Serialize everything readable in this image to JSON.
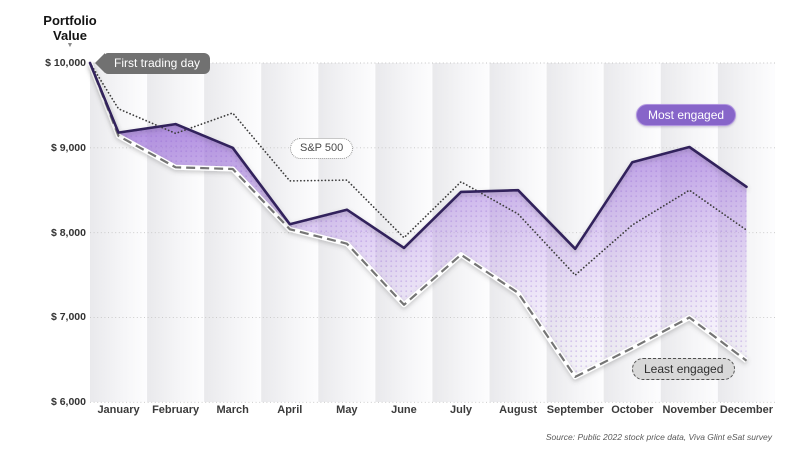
{
  "y_axis": {
    "title_lines": [
      "Portfolio",
      "Value"
    ],
    "tick_labels": [
      "$ 10,000",
      "$ 9,000",
      "$ 8,000",
      "$ 7,000",
      "$ 6,000"
    ],
    "tick_values": [
      10000,
      9000,
      8000,
      7000,
      6000
    ]
  },
  "icons": {
    "axis_pointer": "▼"
  },
  "annotations": {
    "first_trading_day": "First trading day",
    "sp500": "S&P 500",
    "most_engaged": "Most engaged",
    "least_engaged": "Least engaged"
  },
  "source": "Source: Public 2022 stock price data, Viva Glint eSat survey",
  "colors": {
    "most_engaged_line": "#31215c",
    "most_engaged_badge": "#8765c9",
    "fill_top": "#8c5bd1",
    "sp500_line": "#3c3c3c",
    "least_engaged_line": "#757575",
    "grid": "#c5c5c5",
    "band_gray": "#e9e9ec"
  },
  "chart_data": {
    "type": "line",
    "title": "Portfolio Value",
    "categories": [
      "January",
      "February",
      "March",
      "April",
      "May",
      "June",
      "July",
      "August",
      "September",
      "October",
      "November",
      "December"
    ],
    "start_point": {
      "label": "First trading day",
      "value": 10000
    },
    "series": [
      {
        "name": "Most engaged",
        "style": "solid",
        "color": "#31215c",
        "values": [
          9180,
          9280,
          9000,
          8100,
          8270,
          7820,
          8480,
          8500,
          7810,
          8830,
          9010,
          8540
        ]
      },
      {
        "name": "S&P 500",
        "style": "dotted",
        "color": "#3c3c3c",
        "values": [
          9460,
          9170,
          9410,
          8610,
          8620,
          7940,
          8600,
          8220,
          7500,
          8090,
          8500,
          8030
        ]
      },
      {
        "name": "Least engaged",
        "style": "dashed",
        "color": "#757575",
        "values": [
          9140,
          8770,
          8750,
          8040,
          7870,
          7150,
          7740,
          7290,
          6300,
          6640,
          7000,
          6490
        ]
      }
    ],
    "ylim": [
      6000,
      10000
    ],
    "grid": "horizontal-dotted",
    "legend_position": "inline-annotations",
    "fill_between": [
      "Most engaged",
      "Least engaged"
    ]
  }
}
